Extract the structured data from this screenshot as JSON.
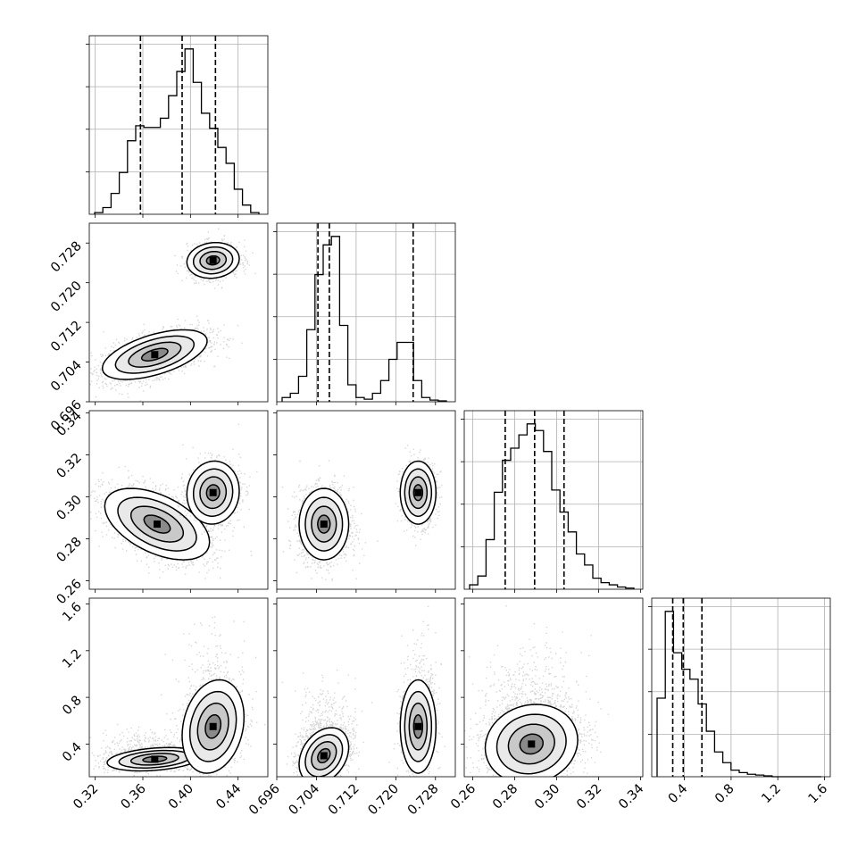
{
  "chart_data": {
    "type": "corner",
    "parameters": [
      {
        "range": [
          0.315,
          0.465
        ],
        "ticks": [
          0.32,
          0.36,
          0.4,
          0.44
        ],
        "tick_labels": [
          "0.32",
          "0.36",
          "0.40",
          "0.44"
        ],
        "quantiles": [
          0.358,
          0.393,
          0.421
        ]
      },
      {
        "range": [
          0.696,
          0.732
        ],
        "ticks": [
          0.696,
          0.704,
          0.712,
          0.72,
          0.728
        ],
        "tick_labels": [
          "0.696",
          "0.704",
          "0.712",
          "0.720",
          "0.728"
        ],
        "quantiles": [
          0.7043,
          0.7066,
          0.7235
        ]
      },
      {
        "range": [
          0.256,
          0.341
        ],
        "ticks": [
          0.26,
          0.28,
          0.3,
          0.32,
          0.34
        ],
        "tick_labels": [
          "0.26",
          "0.28",
          "0.30",
          "0.32",
          "0.34"
        ],
        "quantiles": [
          0.2755,
          0.2895,
          0.3035
        ]
      },
      {
        "range": [
          0.12,
          1.65
        ],
        "ticks": [
          0.4,
          0.8,
          1.2,
          1.6
        ],
        "tick_labels": [
          "0.4",
          "0.8",
          "1.2",
          "1.6"
        ],
        "quantiles": [
          0.3,
          0.39,
          0.55
        ]
      }
    ],
    "histograms": [
      {
        "param": 0,
        "counts": [
          2,
          8,
          25,
          50,
          88,
          106,
          104,
          104,
          115,
          142,
          171,
          198,
          158,
          121,
          103,
          80,
          61,
          30,
          11,
          2
        ]
      },
      {
        "param": 1,
        "counts": [
          5,
          10,
          30,
          85,
          150,
          185,
          195,
          90,
          20,
          5,
          3,
          10,
          25,
          50,
          70,
          70,
          25,
          5,
          2,
          1
        ]
      },
      {
        "param": 2,
        "counts": [
          4,
          12,
          45,
          88,
          117,
          128,
          140,
          150,
          144,
          125,
          90,
          70,
          52,
          32,
          22,
          10,
          6,
          4,
          2,
          1
        ]
      },
      {
        "param": 3,
        "counts": [
          95,
          200,
          150,
          130,
          118,
          88,
          55,
          30,
          17,
          8,
          5,
          3,
          2,
          1,
          0,
          0,
          0,
          0,
          0,
          0
        ]
      }
    ],
    "scatter_panels": [
      {
        "x_param": 0,
        "y_param": 1,
        "modes": [
          {
            "mean": [
              0.37,
              0.7055
            ],
            "sd": [
              0.022,
              0.0025
            ],
            "rho": 0.55,
            "n": 2200
          },
          {
            "mean": [
              0.419,
              0.7245
            ],
            "sd": [
              0.011,
              0.0018
            ],
            "rho": 0.1,
            "n": 1000
          }
        ]
      },
      {
        "x_param": 0,
        "y_param": 2,
        "modes": [
          {
            "mean": [
              0.372,
              0.287
            ],
            "sd": [
              0.022,
              0.0085
            ],
            "rho": -0.5,
            "n": 2200
          },
          {
            "mean": [
              0.419,
              0.302
            ],
            "sd": [
              0.011,
              0.0075
            ],
            "rho": 0.05,
            "n": 1000
          }
        ]
      },
      {
        "x_param": 1,
        "y_param": 2,
        "modes": [
          {
            "mean": [
              0.7055,
              0.287
            ],
            "sd": [
              0.0025,
              0.0085
            ],
            "rho": 0.0,
            "n": 2200
          },
          {
            "mean": [
              0.7245,
              0.302
            ],
            "sd": [
              0.0018,
              0.0075
            ],
            "rho": 0.0,
            "n": 1000
          }
        ]
      },
      {
        "x_param": 0,
        "y_param": 3,
        "modes": [
          {
            "mean": [
              0.37,
              0.27
            ],
            "sd": [
              0.02,
              0.05
            ],
            "rho": 0.3,
            "n": 2000
          },
          {
            "mean": [
              0.419,
              0.55
            ],
            "sd": [
              0.013,
              0.2
            ],
            "rho": 0.2,
            "n": 1200
          }
        ]
      },
      {
        "x_param": 1,
        "y_param": 3,
        "modes": [
          {
            "mean": [
              0.7055,
              0.3
            ],
            "sd": [
              0.0025,
              0.12
            ],
            "rho": 0.3,
            "n": 2200
          },
          {
            "mean": [
              0.7245,
              0.55
            ],
            "sd": [
              0.0018,
              0.2
            ],
            "rho": 0.0,
            "n": 1000
          }
        ]
      },
      {
        "x_param": 2,
        "y_param": 3,
        "modes": [
          {
            "mean": [
              0.288,
              0.4
            ],
            "sd": [
              0.011,
              0.17
            ],
            "rho": 0.1,
            "n": 3200
          }
        ]
      }
    ],
    "grid": true,
    "quantile_lines": "dashed"
  }
}
